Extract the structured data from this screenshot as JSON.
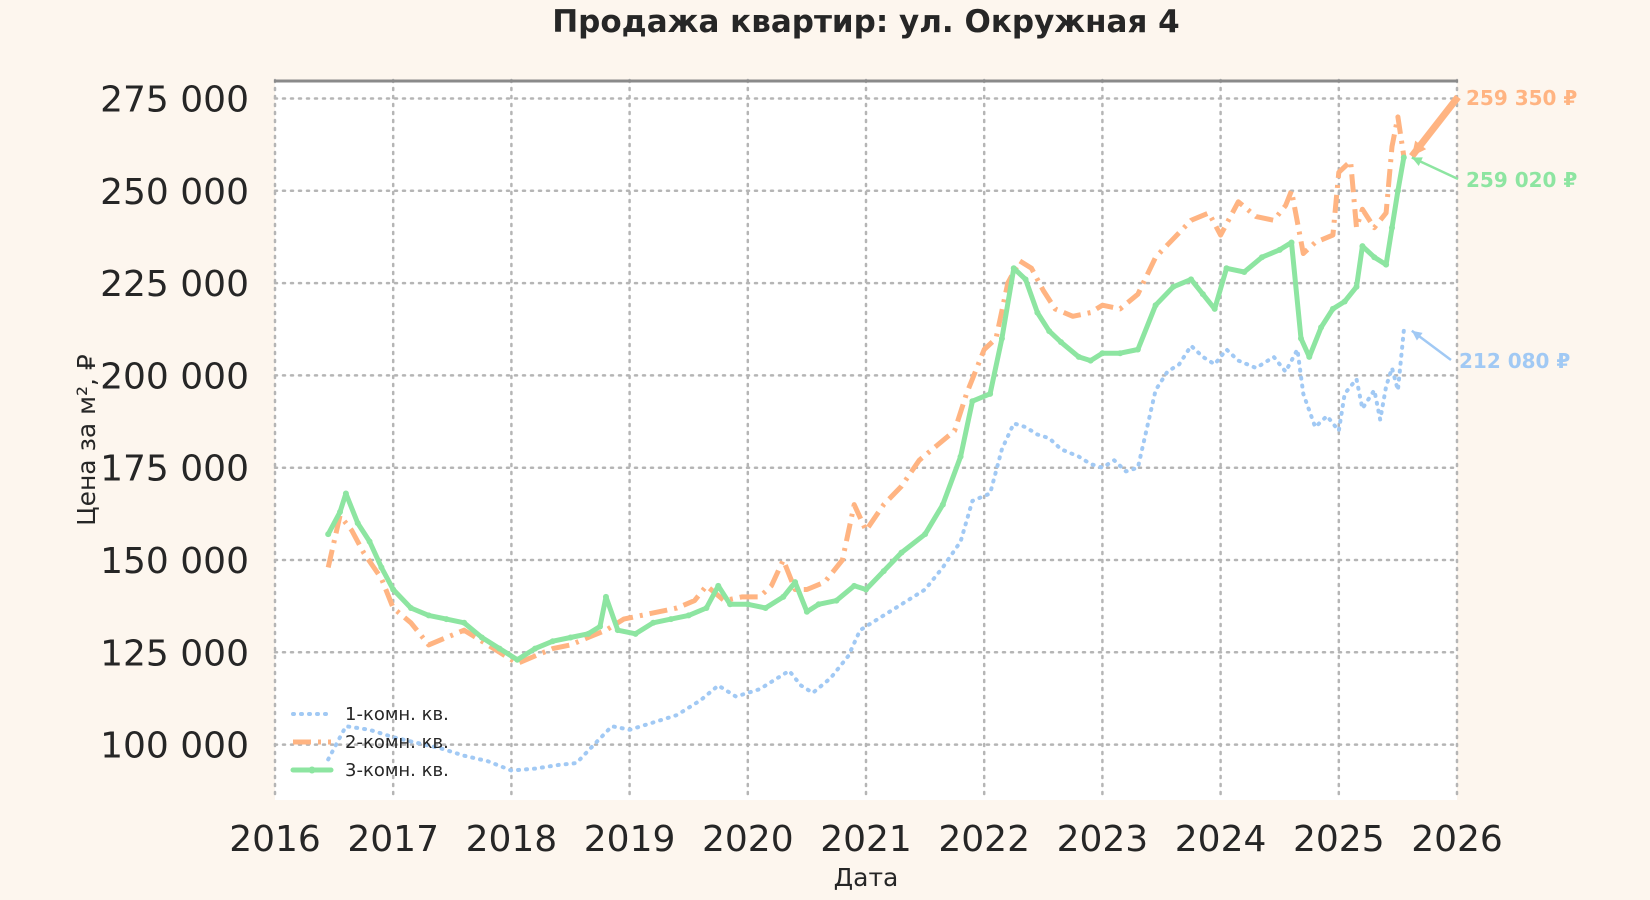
{
  "chart_data": {
    "type": "line",
    "title": "Продажа квартир: ул. Окружная 4",
    "xlabel": "Дата",
    "ylabel": "Цена за м², ₽",
    "xlim": [
      2016,
      2026
    ],
    "ylim": [
      85000,
      280000
    ],
    "x_ticks": [
      2016,
      2017,
      2018,
      2019,
      2020,
      2021,
      2022,
      2023,
      2024,
      2025,
      2026
    ],
    "x_tick_labels": [
      "2016",
      "2017",
      "2018",
      "2019",
      "2020",
      "2021",
      "2022",
      "2023",
      "2024",
      "2025",
      "2026"
    ],
    "y_ticks": [
      100000,
      125000,
      150000,
      175000,
      200000,
      225000,
      250000,
      275000
    ],
    "y_tick_labels": [
      "100 000",
      "125 000",
      "150 000",
      "175 000",
      "200 000",
      "225 000",
      "250 000",
      "275 000"
    ],
    "grid": true,
    "legend_position": "lower-left",
    "series": [
      {
        "name": "1-комн. кв.",
        "color": "#a1c9f4",
        "style": "dotted",
        "points": [
          [
            2016.45,
            96000
          ],
          [
            2016.6,
            105000
          ],
          [
            2016.8,
            104000
          ],
          [
            2017.0,
            102000
          ],
          [
            2017.2,
            100500
          ],
          [
            2017.4,
            99000
          ],
          [
            2017.6,
            97000
          ],
          [
            2017.8,
            95500
          ],
          [
            2018.0,
            93000
          ],
          [
            2018.2,
            93500
          ],
          [
            2018.4,
            94500
          ],
          [
            2018.55,
            95000
          ],
          [
            2018.7,
            100000
          ],
          [
            2018.85,
            105000
          ],
          [
            2019.0,
            104000
          ],
          [
            2019.2,
            106000
          ],
          [
            2019.4,
            108000
          ],
          [
            2019.6,
            112000
          ],
          [
            2019.75,
            116000
          ],
          [
            2019.9,
            113000
          ],
          [
            2020.1,
            115000
          ],
          [
            2020.25,
            118000
          ],
          [
            2020.35,
            120000
          ],
          [
            2020.45,
            116000
          ],
          [
            2020.55,
            114000
          ],
          [
            2020.7,
            118000
          ],
          [
            2020.85,
            124000
          ],
          [
            2020.95,
            131000
          ],
          [
            2021.1,
            134000
          ],
          [
            2021.3,
            138000
          ],
          [
            2021.5,
            142000
          ],
          [
            2021.65,
            148000
          ],
          [
            2021.8,
            155000
          ],
          [
            2021.9,
            166000
          ],
          [
            2022.05,
            168000
          ],
          [
            2022.15,
            180000
          ],
          [
            2022.25,
            187000
          ],
          [
            2022.35,
            186000
          ],
          [
            2022.45,
            184000
          ],
          [
            2022.55,
            183000
          ],
          [
            2022.65,
            180000
          ],
          [
            2022.8,
            178000
          ],
          [
            2022.9,
            176000
          ],
          [
            2023.0,
            175000
          ],
          [
            2023.1,
            177000
          ],
          [
            2023.2,
            174000
          ],
          [
            2023.3,
            175000
          ],
          [
            2023.35,
            182000
          ],
          [
            2023.45,
            196000
          ],
          [
            2023.55,
            201000
          ],
          [
            2023.65,
            203000
          ],
          [
            2023.75,
            208000
          ],
          [
            2023.85,
            205000
          ],
          [
            2023.95,
            203000
          ],
          [
            2024.05,
            207000
          ],
          [
            2024.15,
            204000
          ],
          [
            2024.3,
            202000
          ],
          [
            2024.45,
            205000
          ],
          [
            2024.55,
            201000
          ],
          [
            2024.65,
            207000
          ],
          [
            2024.7,
            195000
          ],
          [
            2024.8,
            186000
          ],
          [
            2024.9,
            189000
          ],
          [
            2025.0,
            185000
          ],
          [
            2025.05,
            195000
          ],
          [
            2025.15,
            199000
          ],
          [
            2025.2,
            191000
          ],
          [
            2025.3,
            196000
          ],
          [
            2025.35,
            188000
          ],
          [
            2025.4,
            197000
          ],
          [
            2025.45,
            202000
          ],
          [
            2025.5,
            196000
          ],
          [
            2025.55,
            212080
          ]
        ]
      },
      {
        "name": "2-комн. кв.",
        "color": "#ffb482",
        "style": "dashdot",
        "points": [
          [
            2016.45,
            148000
          ],
          [
            2016.55,
            162000
          ],
          [
            2016.65,
            158000
          ],
          [
            2016.75,
            152000
          ],
          [
            2016.9,
            145000
          ],
          [
            2017.0,
            137000
          ],
          [
            2017.15,
            133000
          ],
          [
            2017.3,
            127000
          ],
          [
            2017.45,
            129000
          ],
          [
            2017.6,
            131000
          ],
          [
            2017.75,
            128000
          ],
          [
            2017.9,
            125000
          ],
          [
            2018.05,
            122000
          ],
          [
            2018.2,
            124000
          ],
          [
            2018.35,
            126000
          ],
          [
            2018.5,
            127000
          ],
          [
            2018.65,
            129000
          ],
          [
            2018.8,
            131000
          ],
          [
            2018.95,
            134000
          ],
          [
            2019.1,
            135000
          ],
          [
            2019.25,
            136000
          ],
          [
            2019.4,
            137000
          ],
          [
            2019.55,
            139000
          ],
          [
            2019.65,
            143000
          ],
          [
            2019.8,
            139000
          ],
          [
            2019.95,
            140000
          ],
          [
            2020.1,
            140000
          ],
          [
            2020.2,
            143000
          ],
          [
            2020.3,
            150000
          ],
          [
            2020.4,
            142000
          ],
          [
            2020.5,
            142000
          ],
          [
            2020.65,
            144000
          ],
          [
            2020.8,
            150000
          ],
          [
            2020.9,
            165000
          ],
          [
            2021.0,
            158000
          ],
          [
            2021.15,
            165000
          ],
          [
            2021.3,
            170000
          ],
          [
            2021.45,
            177000
          ],
          [
            2021.6,
            181000
          ],
          [
            2021.75,
            185000
          ],
          [
            2021.85,
            195000
          ],
          [
            2022.0,
            207000
          ],
          [
            2022.1,
            210000
          ],
          [
            2022.2,
            225000
          ],
          [
            2022.3,
            231000
          ],
          [
            2022.4,
            229000
          ],
          [
            2022.5,
            223000
          ],
          [
            2022.6,
            218000
          ],
          [
            2022.75,
            216000
          ],
          [
            2022.9,
            217000
          ],
          [
            2023.0,
            219000
          ],
          [
            2023.15,
            218000
          ],
          [
            2023.3,
            222000
          ],
          [
            2023.45,
            232000
          ],
          [
            2023.6,
            237000
          ],
          [
            2023.75,
            242000
          ],
          [
            2023.9,
            244000
          ],
          [
            2024.0,
            238000
          ],
          [
            2024.15,
            247000
          ],
          [
            2024.3,
            243000
          ],
          [
            2024.45,
            242000
          ],
          [
            2024.55,
            246000
          ],
          [
            2024.6,
            250000
          ],
          [
            2024.7,
            233000
          ],
          [
            2024.8,
            236000
          ],
          [
            2024.95,
            238000
          ],
          [
            2025.0,
            255000
          ],
          [
            2025.1,
            258000
          ],
          [
            2025.15,
            240000
          ],
          [
            2025.2,
            245000
          ],
          [
            2025.3,
            240000
          ],
          [
            2025.4,
            244000
          ],
          [
            2025.45,
            262000
          ],
          [
            2025.5,
            270000
          ],
          [
            2025.55,
            259350
          ]
        ]
      },
      {
        "name": "3-комн. кв.",
        "color": "#8de5a1",
        "style": "solid-dots",
        "points": [
          [
            2016.45,
            157000
          ],
          [
            2016.55,
            163000
          ],
          [
            2016.6,
            168000
          ],
          [
            2016.7,
            160000
          ],
          [
            2016.8,
            155000
          ],
          [
            2016.9,
            148000
          ],
          [
            2017.0,
            142000
          ],
          [
            2017.15,
            137000
          ],
          [
            2017.3,
            135000
          ],
          [
            2017.45,
            134000
          ],
          [
            2017.6,
            133000
          ],
          [
            2017.75,
            129000
          ],
          [
            2017.9,
            126000
          ],
          [
            2018.05,
            123000
          ],
          [
            2018.2,
            126000
          ],
          [
            2018.35,
            128000
          ],
          [
            2018.5,
            129000
          ],
          [
            2018.65,
            130000
          ],
          [
            2018.75,
            132000
          ],
          [
            2018.8,
            140000
          ],
          [
            2018.9,
            131000
          ],
          [
            2019.05,
            130000
          ],
          [
            2019.2,
            133000
          ],
          [
            2019.35,
            134000
          ],
          [
            2019.5,
            135000
          ],
          [
            2019.65,
            137000
          ],
          [
            2019.75,
            143000
          ],
          [
            2019.85,
            138000
          ],
          [
            2020.0,
            138000
          ],
          [
            2020.15,
            137000
          ],
          [
            2020.3,
            140000
          ],
          [
            2020.4,
            144000
          ],
          [
            2020.5,
            136000
          ],
          [
            2020.6,
            138000
          ],
          [
            2020.75,
            139000
          ],
          [
            2020.9,
            143000
          ],
          [
            2021.0,
            142000
          ],
          [
            2021.15,
            147000
          ],
          [
            2021.3,
            152000
          ],
          [
            2021.5,
            157000
          ],
          [
            2021.65,
            165000
          ],
          [
            2021.8,
            178000
          ],
          [
            2021.9,
            193000
          ],
          [
            2022.05,
            195000
          ],
          [
            2022.15,
            210000
          ],
          [
            2022.25,
            229000
          ],
          [
            2022.35,
            226000
          ],
          [
            2022.45,
            217000
          ],
          [
            2022.55,
            212000
          ],
          [
            2022.65,
            209000
          ],
          [
            2022.8,
            205000
          ],
          [
            2022.9,
            204000
          ],
          [
            2023.0,
            206000
          ],
          [
            2023.15,
            206000
          ],
          [
            2023.3,
            207000
          ],
          [
            2023.45,
            219000
          ],
          [
            2023.6,
            224000
          ],
          [
            2023.75,
            226000
          ],
          [
            2023.85,
            222000
          ],
          [
            2023.95,
            218000
          ],
          [
            2024.05,
            229000
          ],
          [
            2024.2,
            228000
          ],
          [
            2024.35,
            232000
          ],
          [
            2024.5,
            234000
          ],
          [
            2024.6,
            236000
          ],
          [
            2024.68,
            210000
          ],
          [
            2024.75,
            205000
          ],
          [
            2024.85,
            213000
          ],
          [
            2024.95,
            218000
          ],
          [
            2025.05,
            220000
          ],
          [
            2025.15,
            224000
          ],
          [
            2025.2,
            235000
          ],
          [
            2025.3,
            232000
          ],
          [
            2025.4,
            230000
          ],
          [
            2025.45,
            240000
          ],
          [
            2025.5,
            250000
          ],
          [
            2025.55,
            259020
          ]
        ]
      }
    ],
    "annotations": [
      {
        "text": "259 350 ₽",
        "series": 1,
        "color": "#ffb482"
      },
      {
        "text": "259 020 ₽",
        "series": 2,
        "color": "#8de5a1"
      },
      {
        "text": "212 080 ₽",
        "series": 0,
        "color": "#a1c9f4"
      }
    ]
  }
}
